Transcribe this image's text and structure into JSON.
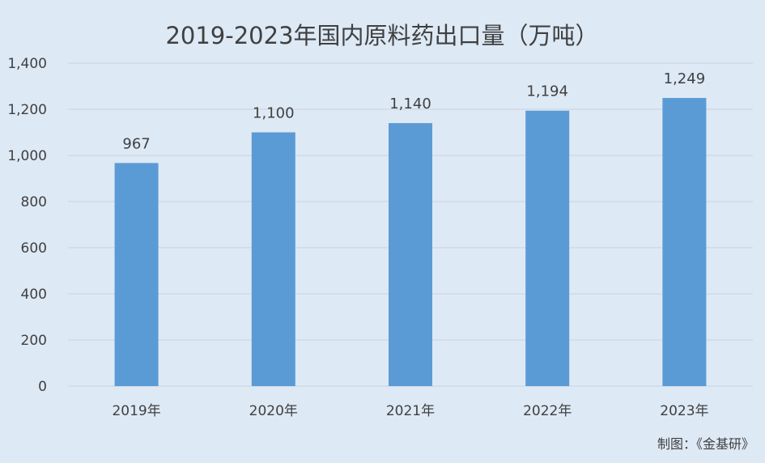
{
  "chart_data": {
    "type": "bar",
    "title": "2019-2023年国内原料药出口量（万吨）",
    "categories": [
      "2019年",
      "2020年",
      "2021年",
      "2022年",
      "2023年"
    ],
    "values": [
      967,
      1100,
      1140,
      1194,
      1249
    ],
    "data_labels": [
      "967",
      "1,100",
      "1,140",
      "1,194",
      "1,249"
    ],
    "y_ticks": [
      "0",
      "200",
      "400",
      "600",
      "800",
      "1,000",
      "1,200",
      "1,400"
    ],
    "ylim": [
      0,
      1400
    ],
    "y_step": 200,
    "grid": true,
    "legend": "none",
    "bar_color": "#5b9bd5",
    "grid_color": "#c9d3de",
    "text_color": "#404040"
  },
  "footer": {
    "source": "制图：《金基研》"
  }
}
